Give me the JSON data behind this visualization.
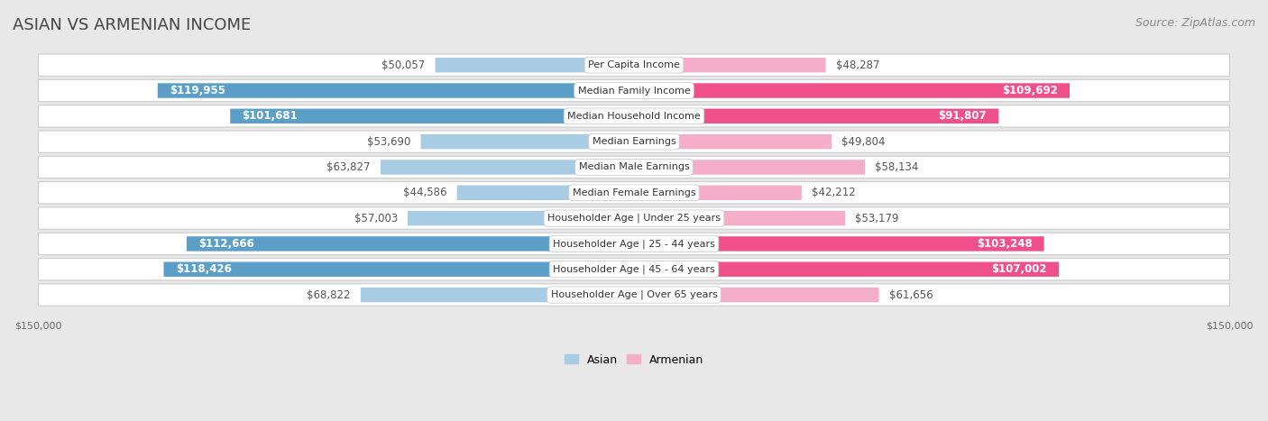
{
  "title": "ASIAN VS ARMENIAN INCOME",
  "source": "Source: ZipAtlas.com",
  "categories": [
    "Per Capita Income",
    "Median Family Income",
    "Median Household Income",
    "Median Earnings",
    "Median Male Earnings",
    "Median Female Earnings",
    "Householder Age | Under 25 years",
    "Householder Age | 25 - 44 years",
    "Householder Age | 45 - 64 years",
    "Householder Age | Over 65 years"
  ],
  "asian_values": [
    50057,
    119955,
    101681,
    53690,
    63827,
    44586,
    57003,
    112666,
    118426,
    68822
  ],
  "armenian_values": [
    48287,
    109692,
    91807,
    49804,
    58134,
    42212,
    53179,
    103248,
    107002,
    61656
  ],
  "asian_labels": [
    "$50,057",
    "$119,955",
    "$101,681",
    "$53,690",
    "$63,827",
    "$44,586",
    "$57,003",
    "$112,666",
    "$118,426",
    "$68,822"
  ],
  "armenian_labels": [
    "$48,287",
    "$109,692",
    "$91,807",
    "$49,804",
    "$58,134",
    "$42,212",
    "$53,179",
    "$103,248",
    "$107,002",
    "$61,656"
  ],
  "asian_light": "#a8cce4",
  "asian_dark": "#5b9fc8",
  "armenian_light": "#f5aec8",
  "armenian_dark": "#f0508a",
  "dark_threshold": 80000,
  "max_value": 150000,
  "bg_color": "#e8e8e8",
  "row_bg": "#ffffff",
  "row_border": "#cccccc",
  "legend_asian": "Asian",
  "legend_armenian": "Armenian",
  "title_fontsize": 13,
  "source_fontsize": 9,
  "bar_label_fontsize": 8.5,
  "cat_label_fontsize": 8,
  "axis_label_fontsize": 8,
  "label_inside_threshold": 80000
}
